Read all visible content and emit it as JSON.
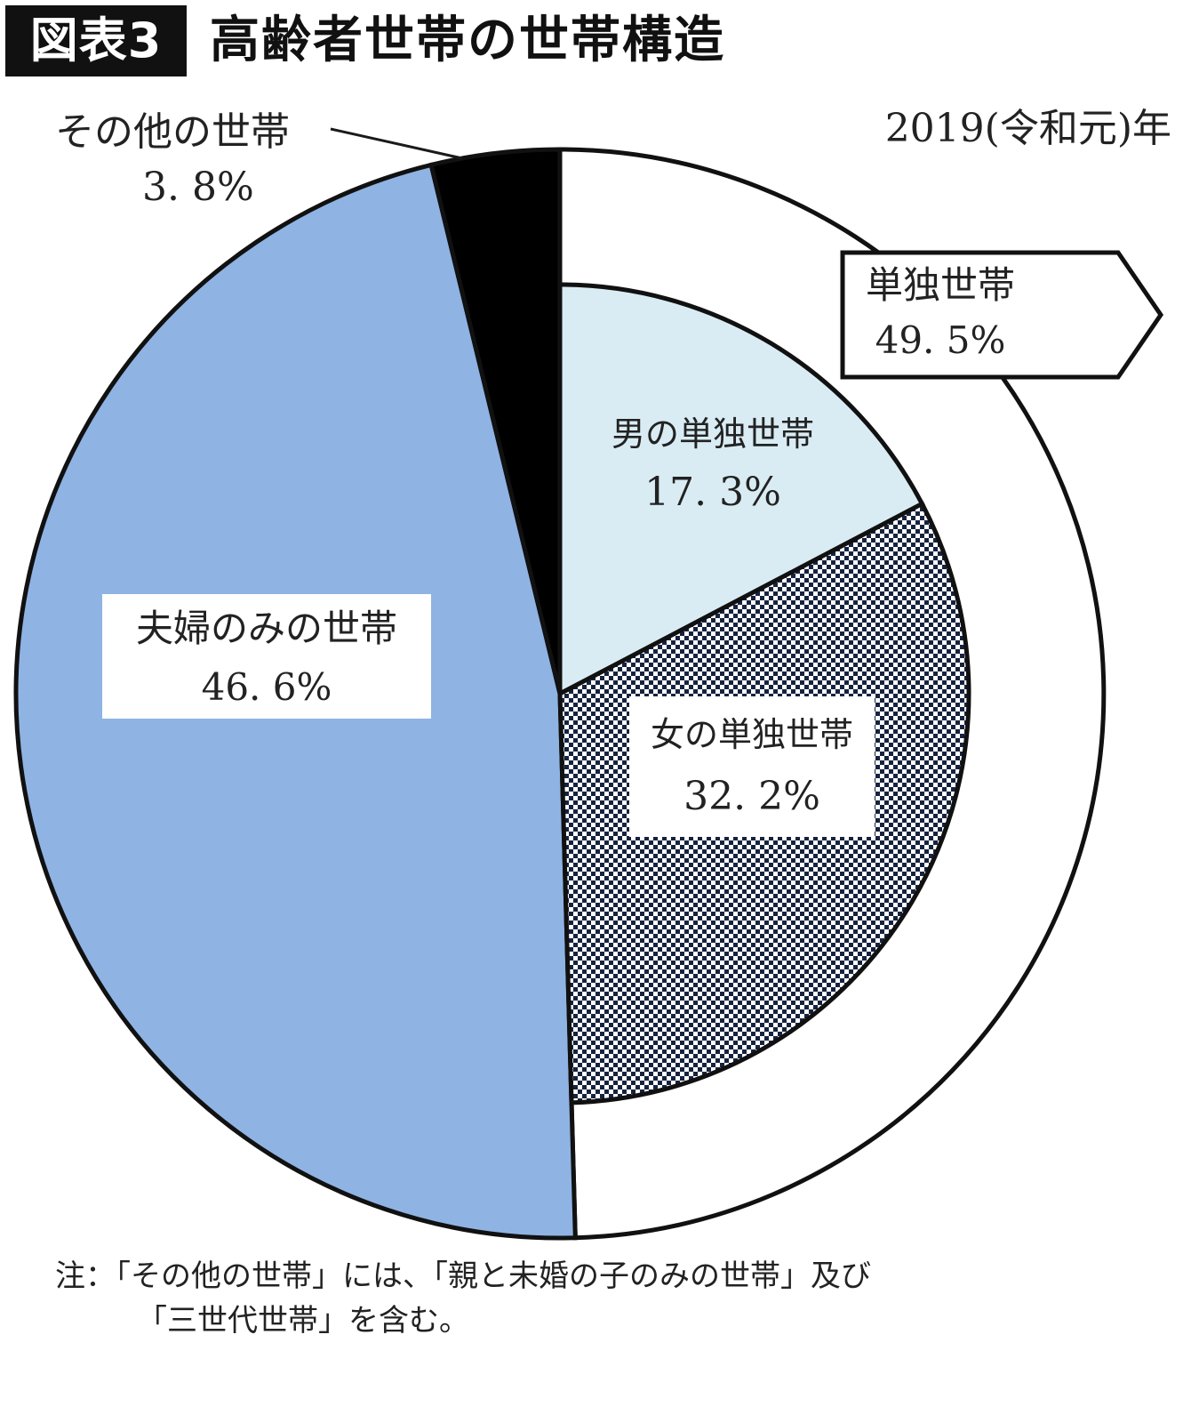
{
  "header": {
    "figure_label": "図表3",
    "title": "高齢者世帯の世帯構造"
  },
  "chart_data": [
    {
      "type": "pie",
      "ring": "outer",
      "period": "2019(令和元)年",
      "slices": [
        {
          "key": "single",
          "name": "単独世帯",
          "value": 49.5,
          "label": "49. 5%",
          "color": "#ffffff"
        },
        {
          "key": "couple",
          "name": "夫婦のみの世帯",
          "value": 46.6,
          "label": "46. 6%",
          "color": "#8fb3e3"
        },
        {
          "key": "other",
          "name": "その他の世帯",
          "value": 3.8,
          "label": "3. 8%",
          "color": "#000000"
        }
      ]
    },
    {
      "type": "pie",
      "ring": "inner",
      "parent": "単独世帯",
      "slices": [
        {
          "key": "male",
          "name": "男の単独世帯",
          "value": 17.3,
          "label": "17. 3%",
          "color": "#d9ecf4"
        },
        {
          "key": "female",
          "name": "女の単独世帯",
          "value": 32.2,
          "label": "32. 2%",
          "color": "#16233f",
          "pattern": "checkered"
        }
      ]
    }
  ],
  "note": {
    "line1": "注：「その他の世帯」には、「親と未婚の子のみの世帯」及び",
    "line2": "「三世代世帯」を含む。"
  }
}
